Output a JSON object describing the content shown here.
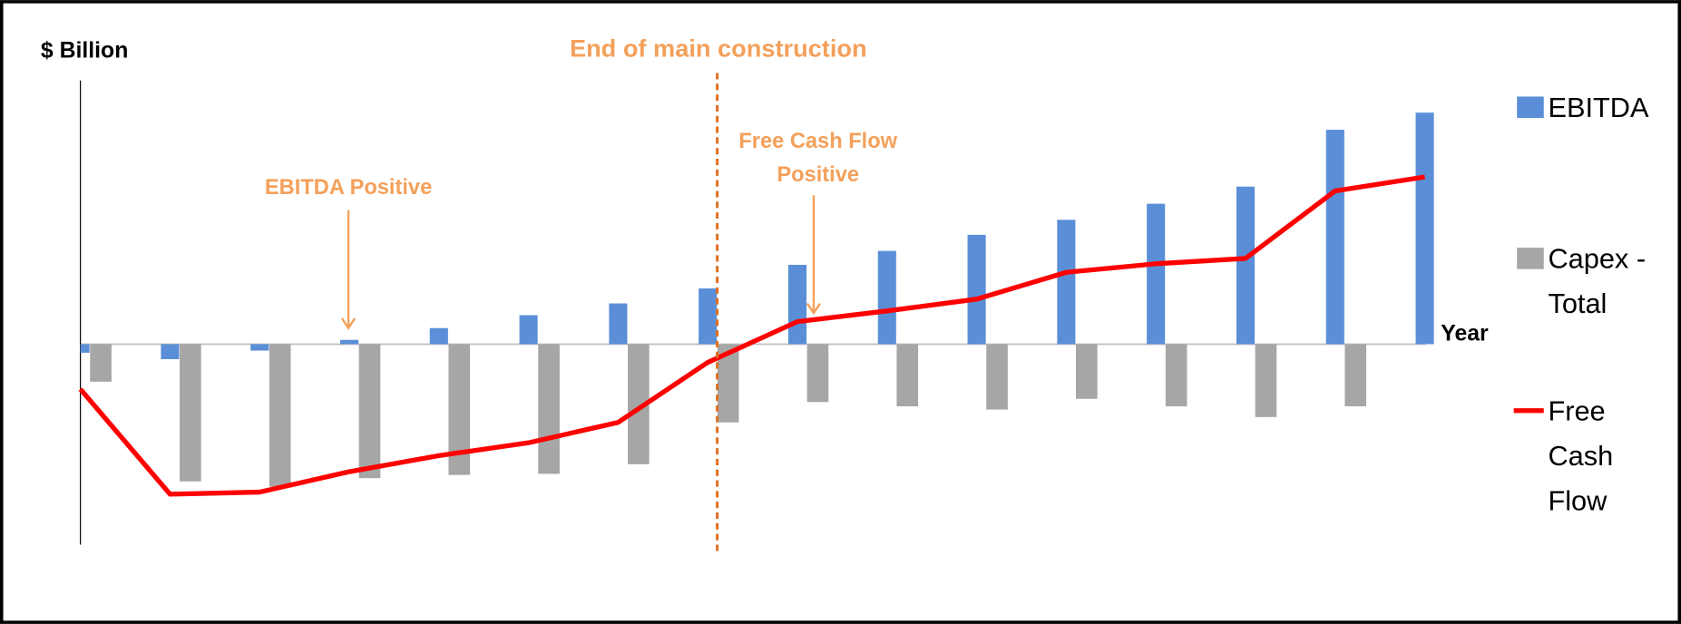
{
  "chart_data": {
    "type": "bar",
    "y_label": "$ Billion",
    "x_label": "Year",
    "categories": [
      null,
      null,
      null,
      null,
      null,
      null,
      null,
      null,
      null,
      null,
      null,
      null,
      null,
      null,
      null,
      null
    ],
    "ylim": [
      -18.7,
      24.6
    ],
    "series": [
      {
        "name": "EBITDA",
        "type": "bar",
        "color": "#5a8fd8",
        "values": [
          -0.8,
          -1.4,
          -0.6,
          0.4,
          1.5,
          2.7,
          3.8,
          5.2,
          7.4,
          8.7,
          10.2,
          11.6,
          13.1,
          14.7,
          20,
          21.6
        ]
      },
      {
        "name": "Capex - Total",
        "type": "bar",
        "color": "#a6a6a6",
        "values": [
          -3.5,
          -12.8,
          -13.3,
          -12.5,
          -12.2,
          -12.1,
          -11.2,
          -7.3,
          -5.4,
          -5.8,
          -6.1,
          -5.1,
          -5.8,
          -6.8,
          -5.8,
          null
        ]
      },
      {
        "name": "Free Cash Flow",
        "type": "line",
        "color": "#ff0000",
        "values": [
          -4.2,
          -14,
          -13.8,
          -11.9,
          -10.4,
          -9.2,
          -7.3,
          -1.7,
          2.1,
          3.1,
          4.2,
          6.7,
          7.5,
          8,
          14.3,
          15.6
        ]
      }
    ],
    "annotations": [
      {
        "text": "End of main construction"
      },
      {
        "text": "EBITDA Positive"
      },
      {
        "text": "Free Cash Flow Positive"
      }
    ]
  }
}
